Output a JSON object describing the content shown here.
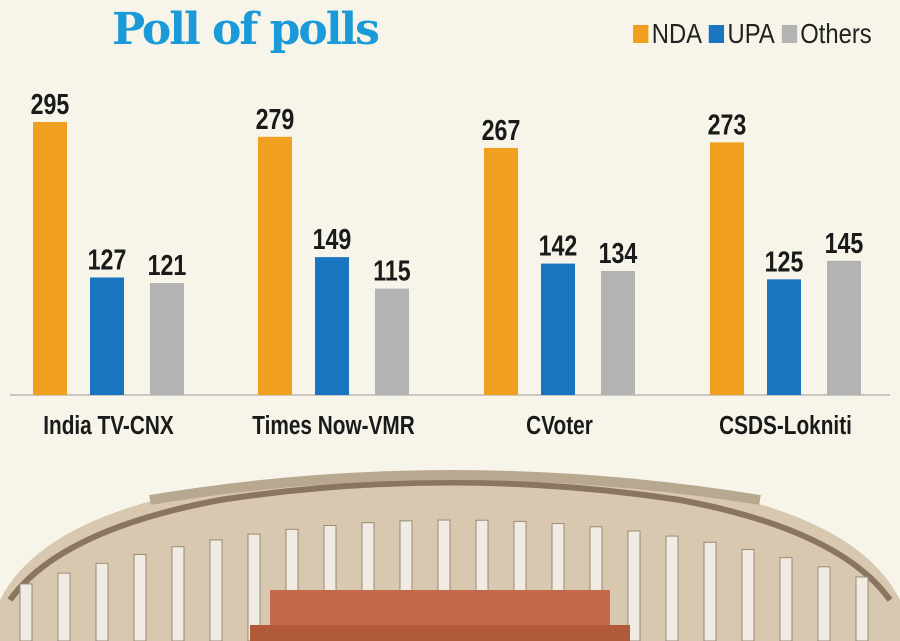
{
  "chart_data": {
    "type": "bar",
    "title": "Poll of polls",
    "categories": [
      "India TV-CNX",
      "Times Now-VMR",
      "CVoter",
      "CSDS-Lokniti"
    ],
    "series": [
      {
        "name": "NDA",
        "values": [
          295,
          279,
          267,
          273
        ],
        "color": "#f0a01e"
      },
      {
        "name": "UPA",
        "values": [
          127,
          149,
          142,
          125
        ],
        "color": "#1a75c0"
      },
      {
        "name": "Others",
        "values": [
          121,
          115,
          134,
          145
        ],
        "color": "#b3b3b3"
      }
    ],
    "ylim": [
      0,
      300
    ],
    "grid": false,
    "legend": "top-right",
    "xlabel": "",
    "ylabel": ""
  }
}
